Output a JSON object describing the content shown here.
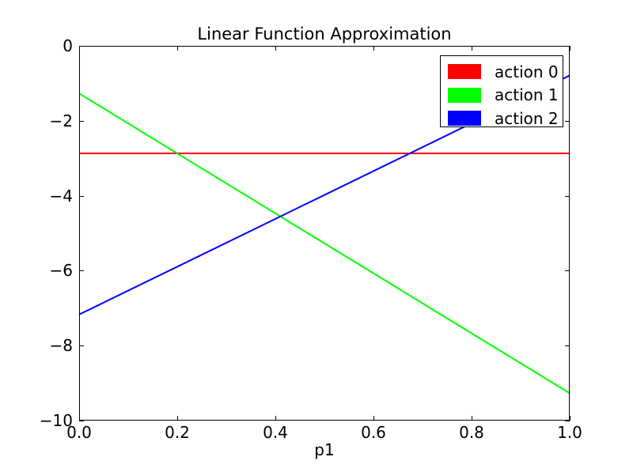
{
  "chart_data": {
    "type": "line",
    "title": "Linear Function Approximation",
    "xlabel": "p1",
    "ylabel": "",
    "xlim": [
      0.0,
      1.0
    ],
    "ylim": [
      -10,
      0
    ],
    "grid": false,
    "background_color": "#ffffff",
    "axis_color": "#000000",
    "line_width": 2,
    "x_ticks": {
      "values": [
        0.0,
        0.2,
        0.4,
        0.6,
        0.8,
        1.0
      ],
      "labels": [
        "0.0",
        "0.2",
        "0.4",
        "0.6",
        "0.8",
        "1.0"
      ]
    },
    "y_ticks": {
      "values": [
        0,
        -2,
        -4,
        -6,
        -8,
        -10
      ],
      "labels": [
        "0",
        "−2",
        "−4",
        "−6",
        "−8",
        "−10"
      ]
    },
    "legend": {
      "position": "upper right"
    },
    "series": [
      {
        "name": "action 0",
        "color": "#ff0000",
        "x": [
          0.0,
          1.0
        ],
        "y": [
          -2.87,
          -2.87
        ]
      },
      {
        "name": "action 1",
        "color": "#00ff00",
        "x": [
          0.0,
          1.0
        ],
        "y": [
          -1.27,
          -9.27
        ]
      },
      {
        "name": "action 2",
        "color": "#0000ff",
        "x": [
          0.0,
          1.0
        ],
        "y": [
          -7.17,
          -0.79
        ]
      }
    ]
  }
}
